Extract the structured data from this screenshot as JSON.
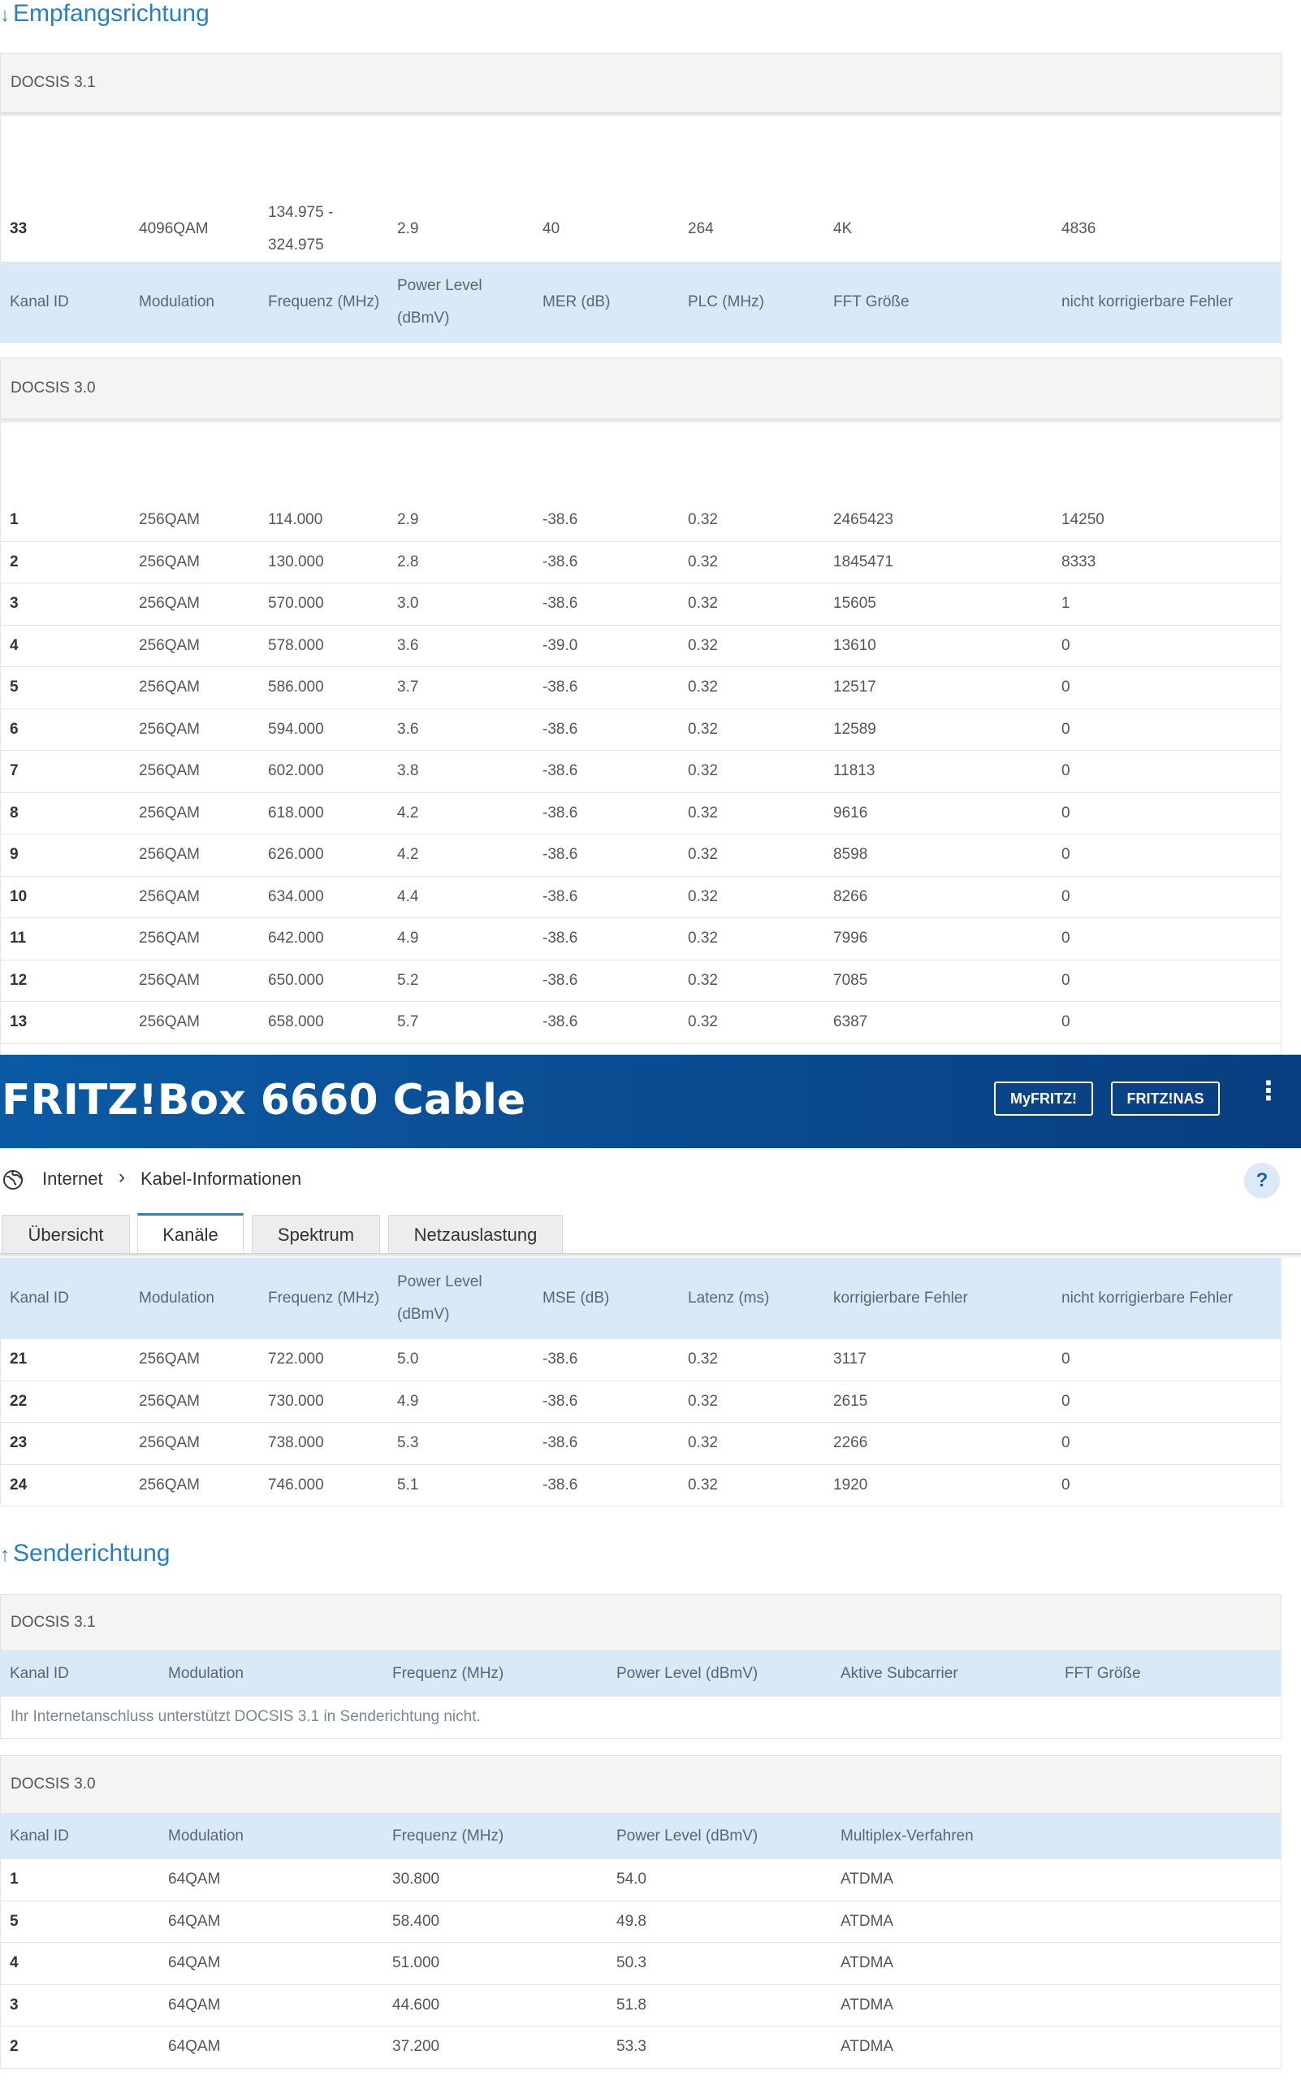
{
  "downstream": {
    "title": "Empfangsrichtung",
    "d31": {
      "label": "DOCSIS 3.1",
      "row": [
        "33",
        "4096QAM",
        "134.975 - 324.975",
        "2.9",
        "40",
        "264",
        "4K",
        "4836"
      ],
      "headers": [
        "Kanal ID",
        "Modulation",
        "Frequenz (MHz)",
        "Power Level (dBmV)",
        "MER (dB)",
        "PLC (MHz)",
        "FFT Größe",
        "nicht korrigierbare Fehler"
      ]
    },
    "d30": {
      "label": "DOCSIS 3.0",
      "rows": [
        [
          "1",
          "256QAM",
          "114.000",
          "2.9",
          "-38.6",
          "0.32",
          "2465423",
          "14250"
        ],
        [
          "2",
          "256QAM",
          "130.000",
          "2.8",
          "-38.6",
          "0.32",
          "1845471",
          "8333"
        ],
        [
          "3",
          "256QAM",
          "570.000",
          "3.0",
          "-38.6",
          "0.32",
          "15605",
          "1"
        ],
        [
          "4",
          "256QAM",
          "578.000",
          "3.6",
          "-39.0",
          "0.32",
          "13610",
          "0"
        ],
        [
          "5",
          "256QAM",
          "586.000",
          "3.7",
          "-38.6",
          "0.32",
          "12517",
          "0"
        ],
        [
          "6",
          "256QAM",
          "594.000",
          "3.6",
          "-38.6",
          "0.32",
          "12589",
          "0"
        ],
        [
          "7",
          "256QAM",
          "602.000",
          "3.8",
          "-38.6",
          "0.32",
          "11813",
          "0"
        ],
        [
          "8",
          "256QAM",
          "618.000",
          "4.2",
          "-38.6",
          "0.32",
          "9616",
          "0"
        ],
        [
          "9",
          "256QAM",
          "626.000",
          "4.2",
          "-38.6",
          "0.32",
          "8598",
          "0"
        ],
        [
          "10",
          "256QAM",
          "634.000",
          "4.4",
          "-38.6",
          "0.32",
          "8266",
          "0"
        ],
        [
          "11",
          "256QAM",
          "642.000",
          "4.9",
          "-38.6",
          "0.32",
          "7996",
          "0"
        ],
        [
          "12",
          "256QAM",
          "650.000",
          "5.2",
          "-38.6",
          "0.32",
          "7085",
          "0"
        ],
        [
          "13",
          "256QAM",
          "658.000",
          "5.7",
          "-38.6",
          "0.32",
          "6387",
          "0"
        ]
      ],
      "headers": [
        "Kanal ID",
        "Modulation",
        "Frequenz (MHz)",
        "Power Level (dBmV)",
        "MSE (dB)",
        "Latenz (ms)",
        "korrigierbare Fehler",
        "nicht korrigierbare Fehler"
      ],
      "rows_b": [
        [
          "21",
          "256QAM",
          "722.000",
          "5.0",
          "-38.6",
          "0.32",
          "3117",
          "0"
        ],
        [
          "22",
          "256QAM",
          "730.000",
          "4.9",
          "-38.6",
          "0.32",
          "2615",
          "0"
        ],
        [
          "23",
          "256QAM",
          "738.000",
          "5.3",
          "-38.6",
          "0.32",
          "2266",
          "0"
        ],
        [
          "24",
          "256QAM",
          "746.000",
          "5.1",
          "-38.6",
          "0.32",
          "1920",
          "0"
        ]
      ]
    }
  },
  "header": {
    "brand": "FRITZ!Box 6660 Cable",
    "btn_myfritz": "MyFRITZ!",
    "btn_fritznas": "FRITZ!NAS",
    "menu_icon": "⋮"
  },
  "breadcrumb": {
    "root": "Internet",
    "sep": "›",
    "current": "Kabel-Informationen",
    "help": "?"
  },
  "tabs": [
    "Übersicht",
    "Kanäle",
    "Spektrum",
    "Netzauslastung"
  ],
  "upstream": {
    "title": "Senderichtung",
    "d31": {
      "label": "DOCSIS 3.1",
      "headers": [
        "Kanal ID",
        "Modulation",
        "Frequenz (MHz)",
        "Power Level (dBmV)",
        "Aktive Subcarrier",
        "FFT Größe"
      ],
      "note": "Ihr Internetanschluss unterstützt DOCSIS 3.1 in Senderichtung nicht."
    },
    "d30": {
      "label": "DOCSIS 3.0",
      "headers": [
        "Kanal ID",
        "Modulation",
        "Frequenz (MHz)",
        "Power Level (dBmV)",
        "Multiplex-Verfahren"
      ],
      "rows": [
        [
          "1",
          "64QAM",
          "30.800",
          "54.0",
          "ATDMA"
        ],
        [
          "5",
          "64QAM",
          "58.400",
          "49.8",
          "ATDMA"
        ],
        [
          "4",
          "64QAM",
          "51.000",
          "50.3",
          "ATDMA"
        ],
        [
          "3",
          "64QAM",
          "44.600",
          "51.8",
          "ATDMA"
        ],
        [
          "2",
          "64QAM",
          "37.200",
          "53.3",
          "ATDMA"
        ]
      ]
    }
  },
  "colors": {
    "accent": "#2a7fc1",
    "header_row": "#d9e9f7",
    "brand_bar": "#0b4f95"
  }
}
